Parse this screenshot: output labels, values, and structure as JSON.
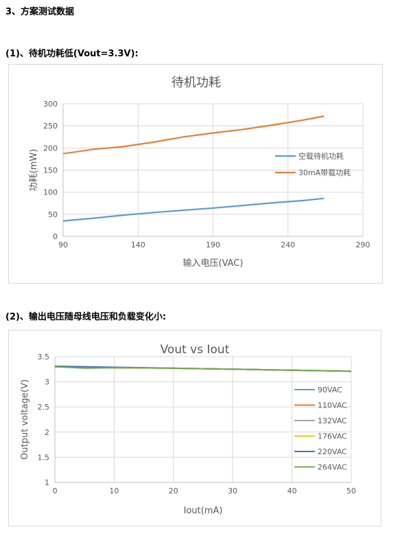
{
  "headings": {
    "section": "3、方案测试数据",
    "sub1": "(1)、待机功耗低(Vout=3.3V):",
    "sub2": "(2)、输出电压随母线电压和负载变化小:"
  },
  "chart_data": [
    {
      "type": "line",
      "title": "待机功耗",
      "xlabel": "输入电压(VAC)",
      "ylabel": "功耗(mW)",
      "xlim": [
        90,
        290
      ],
      "ylim": [
        0,
        300
      ],
      "xticks": [
        90,
        140,
        190,
        240,
        290
      ],
      "yticks": [
        0,
        50,
        100,
        150,
        200,
        250,
        300
      ],
      "grid": true,
      "legend": "right",
      "series": [
        {
          "name": "空载待机功耗",
          "color": "#5b9bd5",
          "x": [
            90,
            110,
            130,
            150,
            170,
            190,
            210,
            230,
            250,
            264
          ],
          "y": [
            35,
            41,
            48,
            54,
            59,
            64,
            70,
            76,
            81,
            86
          ]
        },
        {
          "name": "30mA带载功耗",
          "color": "#ed7d31",
          "x": [
            90,
            110,
            130,
            150,
            170,
            190,
            210,
            230,
            250,
            264
          ],
          "y": [
            187,
            197,
            203,
            213,
            225,
            234,
            242,
            252,
            263,
            272
          ]
        }
      ]
    },
    {
      "type": "line",
      "title": "Vout vs Iout",
      "xlabel": "Iout(mA)",
      "ylabel": "Output voltage(V)",
      "xlim": [
        0,
        50
      ],
      "ylim": [
        1,
        3.5
      ],
      "xticks": [
        0,
        10,
        20,
        30,
        40,
        50
      ],
      "yticks": [
        1,
        1.5,
        2,
        2.5,
        3,
        3.5
      ],
      "grid": true,
      "legend": "right",
      "series": [
        {
          "name": "90VAC",
          "color": "#5b9bd5",
          "x": [
            0,
            10,
            20,
            30,
            40,
            50
          ],
          "y": [
            3.3,
            3.28,
            3.27,
            3.25,
            3.23,
            3.21
          ]
        },
        {
          "name": "110VAC",
          "color": "#ed7d31",
          "x": [
            0,
            10,
            20,
            30,
            40,
            50
          ],
          "y": [
            3.3,
            3.28,
            3.27,
            3.25,
            3.23,
            3.21
          ]
        },
        {
          "name": "132VAC",
          "color": "#a5a5a5",
          "x": [
            0,
            10,
            20,
            30,
            40,
            50
          ],
          "y": [
            3.3,
            3.28,
            3.27,
            3.25,
            3.23,
            3.21
          ]
        },
        {
          "name": "176VAC",
          "color": "#ffc000",
          "x": [
            0,
            10,
            20,
            30,
            40,
            50
          ],
          "y": [
            3.3,
            3.28,
            3.27,
            3.25,
            3.23,
            3.21
          ]
        },
        {
          "name": "220VAC",
          "color": "#4472c4",
          "x": [
            0,
            10,
            20,
            30,
            40,
            50
          ],
          "y": [
            3.31,
            3.29,
            3.27,
            3.25,
            3.23,
            3.21
          ]
        },
        {
          "name": "264VAC",
          "color": "#70ad47",
          "x": [
            0,
            5,
            10,
            20,
            30,
            40,
            50
          ],
          "y": [
            3.3,
            3.27,
            3.28,
            3.27,
            3.25,
            3.23,
            3.21
          ]
        }
      ]
    }
  ]
}
